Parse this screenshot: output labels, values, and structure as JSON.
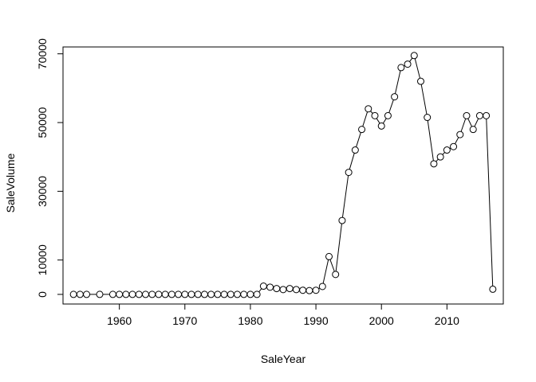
{
  "chart_data": {
    "type": "line",
    "xlabel": "SaleYear",
    "ylabel": "SaleVolume",
    "xlim": [
      1951.4,
      2018.6
    ],
    "ylim": [
      -2800,
      72000
    ],
    "x_ticks": [
      1960,
      1970,
      1980,
      1990,
      2000,
      2010
    ],
    "y_ticks": [
      0,
      10000,
      30000,
      50000,
      70000
    ],
    "marker": "open-circle",
    "line_color": "#000000",
    "x": [
      1953,
      1954,
      1955,
      1957,
      1959,
      1960,
      1961,
      1962,
      1963,
      1964,
      1965,
      1966,
      1967,
      1968,
      1969,
      1970,
      1971,
      1972,
      1973,
      1974,
      1975,
      1976,
      1977,
      1978,
      1979,
      1980,
      1981,
      1982,
      1983,
      1984,
      1985,
      1986,
      1987,
      1988,
      1989,
      1990,
      1991,
      1992,
      1993,
      1994,
      1995,
      1996,
      1997,
      1998,
      1999,
      2000,
      2001,
      2002,
      2003,
      2004,
      2005,
      2006,
      2007,
      2008,
      2009,
      2010,
      2011,
      2012,
      2013,
      2014,
      2015,
      2016,
      2017
    ],
    "y": [
      0,
      0,
      0,
      0,
      0,
      0,
      0,
      0,
      0,
      0,
      0,
      0,
      0,
      0,
      0,
      0,
      0,
      0,
      0,
      0,
      0,
      0,
      0,
      0,
      0,
      0,
      0,
      2400,
      2100,
      1700,
      1400,
      1700,
      1400,
      1200,
      1100,
      1200,
      2300,
      11000,
      5800,
      21500,
      35500,
      42000,
      48000,
      54000,
      52000,
      49000,
      52000,
      57500,
      66000,
      67000,
      69500,
      62000,
      51500,
      38000,
      40000,
      42000,
      43000,
      46500,
      52000,
      48000,
      52000,
      52000,
      1500
    ]
  }
}
